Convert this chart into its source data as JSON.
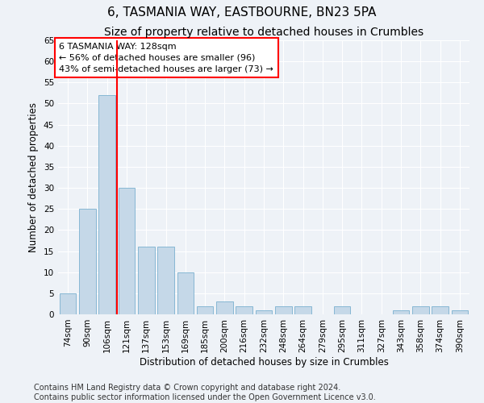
{
  "title": "6, TASMANIA WAY, EASTBOURNE, BN23 5PA",
  "subtitle": "Size of property relative to detached houses in Crumbles",
  "xlabel": "Distribution of detached houses by size in Crumbles",
  "ylabel": "Number of detached properties",
  "categories": [
    "74sqm",
    "90sqm",
    "106sqm",
    "121sqm",
    "137sqm",
    "153sqm",
    "169sqm",
    "185sqm",
    "200sqm",
    "216sqm",
    "232sqm",
    "248sqm",
    "264sqm",
    "279sqm",
    "295sqm",
    "311sqm",
    "327sqm",
    "343sqm",
    "358sqm",
    "374sqm",
    "390sqm"
  ],
  "values": [
    5,
    25,
    52,
    30,
    16,
    16,
    10,
    2,
    3,
    2,
    1,
    2,
    2,
    0,
    2,
    0,
    0,
    1,
    2,
    2,
    1
  ],
  "bar_color": "#c5d8e8",
  "bar_edge_color": "#7ab0cf",
  "vline_x_index": 3,
  "vline_color": "red",
  "annotation_text": "6 TASMANIA WAY: 128sqm\n← 56% of detached houses are smaller (96)\n43% of semi-detached houses are larger (73) →",
  "annotation_box_color": "white",
  "annotation_box_edge_color": "red",
  "ylim": [
    0,
    65
  ],
  "yticks": [
    0,
    5,
    10,
    15,
    20,
    25,
    30,
    35,
    40,
    45,
    50,
    55,
    60,
    65
  ],
  "footer_line1": "Contains HM Land Registry data © Crown copyright and database right 2024.",
  "footer_line2": "Contains public sector information licensed under the Open Government Licence v3.0.",
  "background_color": "#eef2f7",
  "grid_color": "#ffffff",
  "title_fontsize": 11,
  "subtitle_fontsize": 10,
  "axis_label_fontsize": 8.5,
  "tick_fontsize": 7.5,
  "footer_fontsize": 7,
  "annotation_fontsize": 8
}
